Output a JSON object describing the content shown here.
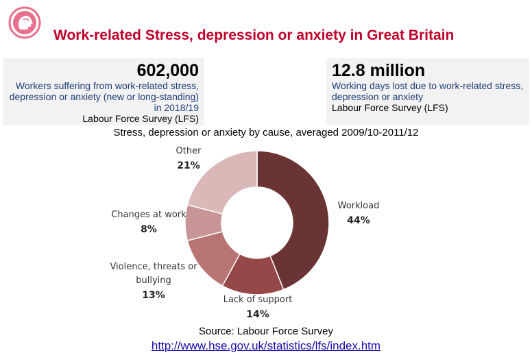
{
  "header": {
    "title": "Work-related Stress, depression or anxiety in Great Britain",
    "logo_icon": "head-profile-icon",
    "logo_color": "#e8708c"
  },
  "stats": [
    {
      "value": "602,000",
      "description": "Workers suffering from work-related stress, depression or anxiety (new or long-standing) in 2018/19",
      "source": "Labour Force Survey (LFS)"
    },
    {
      "value": "12.8 million",
      "description": "Working days lost due to work-related stress, depression or anxiety",
      "source": "Labour Force Survey (LFS)"
    }
  ],
  "footer": {
    "source": "Source: Labour Force Survey",
    "link": "http://www.hse.gov.uk/statistics/lfs/index.htm"
  },
  "chart_data": {
    "type": "pie",
    "title": "Stress, depression or anxiety by cause, averaged 2009/10-2011/12",
    "donut": true,
    "legend": "none",
    "slices": [
      {
        "label": "Workload",
        "value": 44,
        "pct_label": "44%",
        "color": "#6b3434"
      },
      {
        "label": "Lack of support",
        "value": 14,
        "pct_label": "14%",
        "color": "#964848"
      },
      {
        "label": "Violence, threats or bullying",
        "value": 13,
        "pct_label": "13%",
        "color": "#b87373"
      },
      {
        "label": "Changes at work",
        "value": 8,
        "pct_label": "8%",
        "color": "#c79595"
      },
      {
        "label": "Other",
        "value": 21,
        "pct_label": "21%",
        "color": "#dbb8b8"
      }
    ]
  }
}
